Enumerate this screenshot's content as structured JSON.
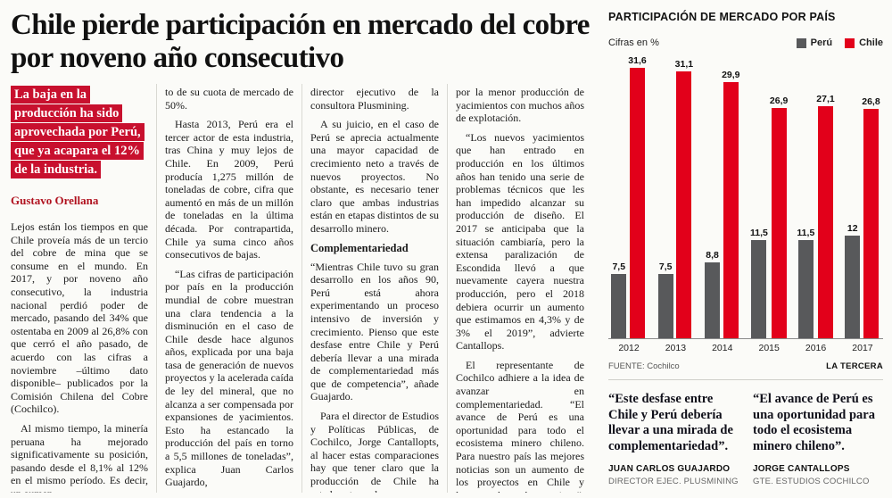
{
  "article": {
    "headline": "Chile pierde participación en mercado del cobre por noveno año consecutivo",
    "lead": "La baja en la producción ha sido aprovechada por Perú, que ya acapara el 12% de la industria.",
    "byline": "Gustavo Orellana",
    "columns": [
      {
        "paragraphs": [
          {
            "type": "p",
            "indent": false,
            "text": "Lejos están los tiempos en que Chile proveía más de un tercio del cobre de mina que se consume en el mundo. En 2017, y por noveno año consecutivo, la industria nacional perdió poder de mercado, pasando del 34% que ostentaba en 2009 al 26,8% con que cerró el año pasado, de acuerdo con las cifras a noviembre –último dato disponible– publicados por la Comisión Chilena del Cobre (Cochilco)."
          },
          {
            "type": "p",
            "indent": true,
            "text": "Al mismo tiempo, la minería peruana ha mejorado significativamente su posición, pasando desde el 8,1% al 12% en el mismo período. Es decir, un aumen-"
          }
        ]
      },
      {
        "paragraphs": [
          {
            "type": "p",
            "indent": false,
            "text": "to de su cuota de mercado de 50%."
          },
          {
            "type": "p",
            "indent": true,
            "text": "Hasta 2013, Perú era el tercer actor de esta industria, tras China y muy lejos de Chile. En 2009, Perú producía 1,275 millón de toneladas de cobre, cifra que aumentó en más de un millón de toneladas en la última década. Por contrapartida, Chile ya suma cinco años consecutivos de bajas."
          },
          {
            "type": "p",
            "indent": true,
            "text": "“Las cifras de participación por país en la producción mundial de cobre muestran una clara tendencia a la disminución en el caso de Chile desde hace algunos años, explicada por una baja tasa de generación de nuevos proyectos y la acelerada caída de ley del mineral, que no alcanza a ser compensada por expansiones de yacimientos. Esto ha estancado la producción del país en torno a 5,5 millones de toneladas”, explica Juan Carlos Guajardo,"
          }
        ]
      },
      {
        "paragraphs": [
          {
            "type": "p",
            "indent": false,
            "text": "director ejecutivo de la consultora Plusmining."
          },
          {
            "type": "p",
            "indent": true,
            "text": "A su juicio, en el caso de Perú se aprecia actualmente una mayor capacidad de crecimiento neto a través de nuevos proyectos. No obstante, es necesario tener claro que ambas industrias están en etapas distintos de su desarrollo minero."
          },
          {
            "type": "h",
            "indent": false,
            "text": "Complementariedad"
          },
          {
            "type": "p",
            "indent": false,
            "text": "“Mientras Chile tuvo su gran desarrollo en los años 90, Perú está ahora experimentando un proceso intensivo de inversión y crecimiento. Pienso que este desfase entre Chile y Perú debería llevar a una mirada de complementariedad más que de competencia”, añade Guajardo."
          },
          {
            "type": "p",
            "indent": true,
            "text": "Para el director de Estudios y Políticas Públicas, de Cochilco, Jorge Cantallopts, al hacer estas comparaciones hay que tener claro que la producción de Chile ha estado estancada"
          }
        ]
      },
      {
        "paragraphs": [
          {
            "type": "p",
            "indent": false,
            "text": "por la menor producción de yacimientos con muchos años de explotación."
          },
          {
            "type": "p",
            "indent": true,
            "text": "“Los nuevos yacimientos que han entrado en producción en los últimos años han tenido una serie de problemas técnicos que les han impedido alcanzar su producción de diseño. El 2017 se anticipaba que la situación cambiaría, pero la extensa paralización de Escondida llevó a que nuevamente cayera nuestra producción, pero el 2018 debiera ocurrir un aumento que estimamos en 4,3% y de 3% el 2019”, advierte Cantallops."
          },
          {
            "type": "p",
            "indent": true,
            "text": "El representante de Cochilco adhiere a la idea de avanzar en complementariedad. “El avance de Perú es una oportunidad para todo el ecosistema minero chileno. Para nuestro país las mejores noticias son un aumento de los proyectos en Chile y luego en los países vecinos”, plantea. ●"
          }
        ]
      }
    ]
  },
  "chart_data": {
    "type": "bar",
    "title": "PARTICIPACIÓN DE MERCADO POR PAÍS",
    "subtitle": "Cifras en %",
    "categories": [
      "2012",
      "2013",
      "2014",
      "2015",
      "2016",
      "2017"
    ],
    "series": [
      {
        "name": "Perú",
        "color": "#58595b",
        "values": [
          7.5,
          7.5,
          8.8,
          11.5,
          11.5,
          12
        ],
        "labels": [
          "7,5",
          "7,5",
          "8,8",
          "11,5",
          "11,5",
          "12"
        ]
      },
      {
        "name": "Chile",
        "color": "#e2001a",
        "values": [
          31.6,
          31.1,
          29.9,
          26.9,
          27.1,
          26.8
        ],
        "labels": [
          "31,6",
          "31,1",
          "29,9",
          "26,9",
          "27,1",
          "26,8"
        ]
      }
    ],
    "ymax": 33,
    "legend_position": "top-right",
    "grid": false,
    "source": "FUENTE: Cochilco",
    "credit": "LA TERCERA"
  },
  "quotes": [
    {
      "text": "“Este desfase entre Chile y Perú debería llevar a una mirada de complementariedad”.",
      "name": "JUAN CARLOS GUAJARDO",
      "role": "DIRECTOR EJEC. PLUSMINING"
    },
    {
      "text": "“El avance de Perú es una oportunidad para todo el ecosistema minero chileno”.",
      "name": "JORGE CANTALLOPS",
      "role": "GTE. ESTUDIOS COCHILCO"
    }
  ],
  "colors": {
    "accent_red": "#e2001a",
    "lead_red": "#c8102e",
    "peru_gray": "#58595b"
  }
}
